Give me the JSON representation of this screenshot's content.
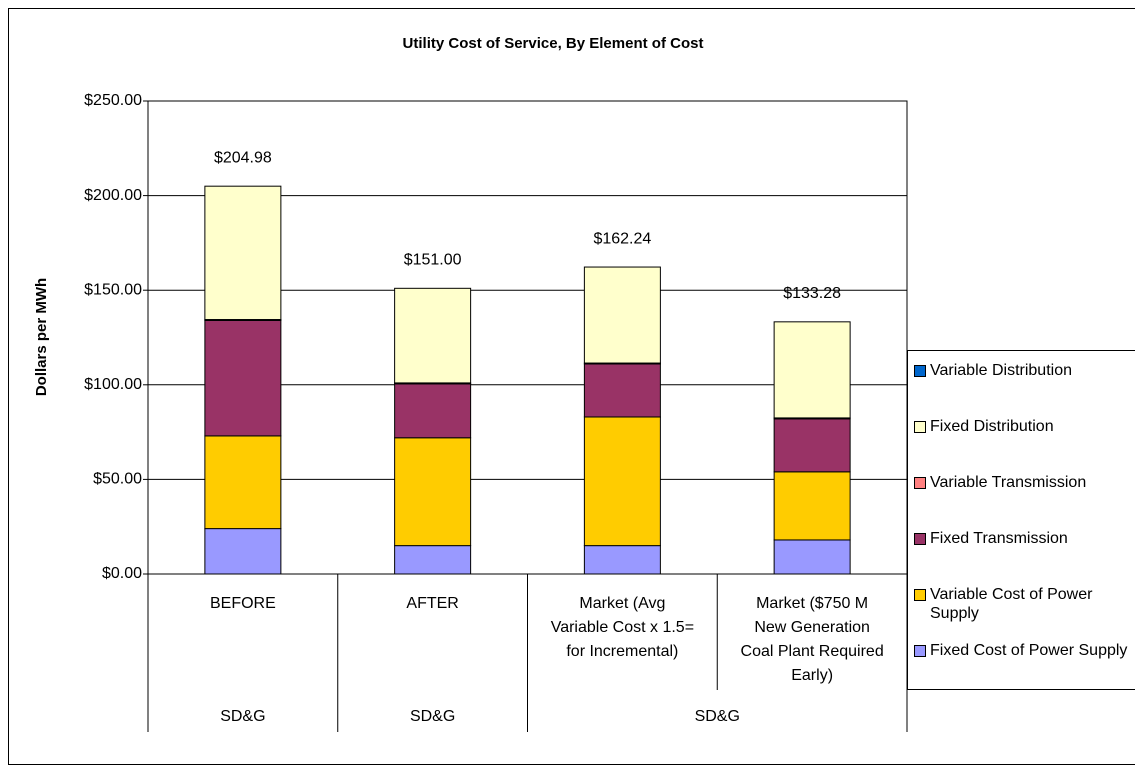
{
  "chart_data": {
    "type": "stacked_bar",
    "title": "Utility Cost of Service, By Element of Cost",
    "y_label": "Dollars per MWh",
    "categories": [
      [
        "BEFORE"
      ],
      [
        "AFTER"
      ],
      [
        "Market (Avg",
        "Variable Cost x 1.5=",
        "for Incremental)"
      ],
      [
        "Market ($750 M",
        "New Generation",
        "Coal Plant Required",
        "Early)"
      ]
    ],
    "groups": [
      {
        "label": "SD&G",
        "span": 1
      },
      {
        "label": "SD&G",
        "span": 1
      },
      {
        "label": "SD&G",
        "span": 2
      }
    ],
    "series": [
      {
        "name": "Fixed Cost of Power Supply",
        "color": "#9999ff",
        "values": [
          24,
          15,
          15,
          18
        ]
      },
      {
        "name": "Variable Cost of Power Supply",
        "color": "#ffcc00",
        "values": [
          49,
          57,
          68,
          36
        ]
      },
      {
        "name": "Fixed Transmission",
        "color": "#993366",
        "values": [
          61,
          28.5,
          28,
          28
        ]
      },
      {
        "name": "Variable Transmission",
        "color": "#ff8080",
        "values": [
          0.5,
          0.5,
          0.5,
          0.5
        ]
      },
      {
        "name": "Fixed Distribution",
        "color": "#ffffcc",
        "values": [
          70.48,
          50,
          50.74,
          50.78
        ]
      },
      {
        "name": "Variable Distribution",
        "color": "#0066cc",
        "values": [
          0,
          0,
          0,
          0
        ]
      }
    ],
    "totals": [
      204.98,
      151.0,
      162.24,
      133.28
    ],
    "total_labels": [
      "$204.98",
      "$151.00",
      "$162.24",
      "$133.28"
    ],
    "ylim": [
      0,
      250
    ],
    "yticks": [
      {
        "value": 0,
        "label": "$0.00"
      },
      {
        "value": 50,
        "label": "$50.00"
      },
      {
        "value": 100,
        "label": "$100.00"
      },
      {
        "value": 150,
        "label": "$150.00"
      },
      {
        "value": 200,
        "label": "$200.00"
      },
      {
        "value": 250,
        "label": "$250.00"
      }
    ],
    "grid": true
  }
}
